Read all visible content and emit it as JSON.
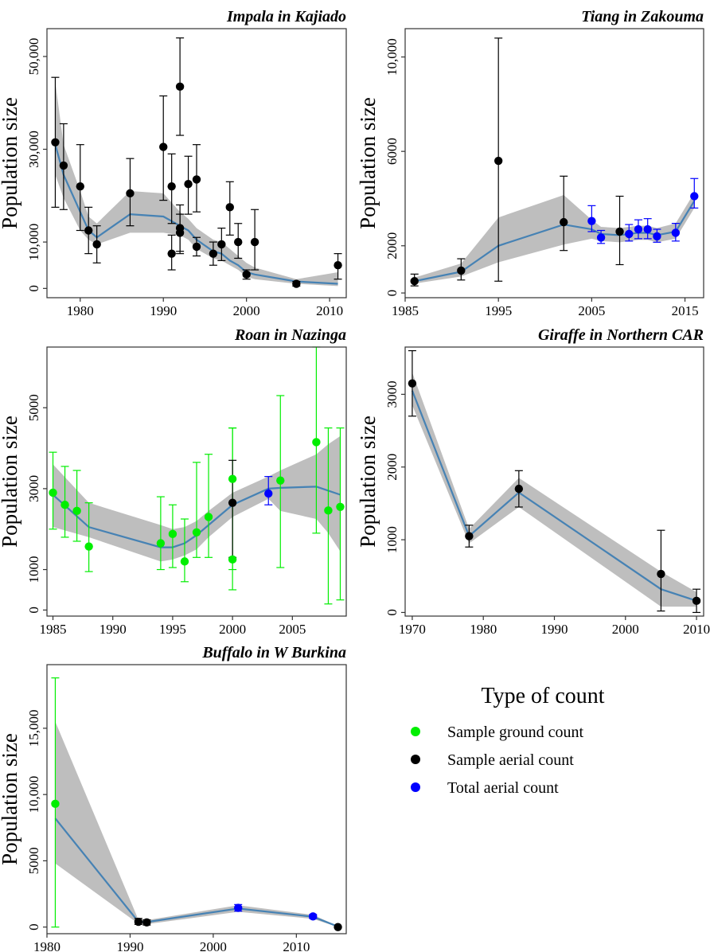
{
  "colors": {
    "ground": "#00ee00",
    "aerial": "#000000",
    "total": "#0000ff",
    "trend": "#4682b4",
    "ribbon": "#bebebe",
    "frame": "#333333"
  },
  "legend": {
    "title": "Type of count",
    "items": [
      {
        "label": "Sample ground count",
        "type": "ground"
      },
      {
        "label": "Sample aerial count",
        "type": "aerial"
      },
      {
        "label": "Total aerial count",
        "type": "total"
      }
    ]
  },
  "chart_data": [
    {
      "type": "scatter",
      "title": "Impala in Kajiado",
      "ylabel": "Population size",
      "xlim": [
        1976,
        2012
      ],
      "ylim": [
        -2000,
        56000
      ],
      "xticks": [
        1980,
        1990,
        2000,
        2010
      ],
      "yticks": [
        0,
        10000,
        30000,
        50000
      ],
      "ytick_labels": [
        "0",
        "10,000",
        "30,000",
        "50,000"
      ],
      "points": [
        {
          "x": 1977,
          "y": 31500,
          "lo": 17500,
          "hi": 45500,
          "type": "aerial"
        },
        {
          "x": 1978,
          "y": 26500,
          "lo": 17000,
          "hi": 35500,
          "type": "aerial"
        },
        {
          "x": 1980,
          "y": 22000,
          "lo": 12500,
          "hi": 31000,
          "type": "aerial"
        },
        {
          "x": 1981,
          "y": 12500,
          "lo": 7500,
          "hi": 17500,
          "type": "aerial"
        },
        {
          "x": 1982,
          "y": 9500,
          "lo": 5500,
          "hi": 13500,
          "type": "aerial"
        },
        {
          "x": 1986,
          "y": 20500,
          "lo": 13500,
          "hi": 28000,
          "type": "aerial"
        },
        {
          "x": 1990,
          "y": 30500,
          "lo": 19000,
          "hi": 41500,
          "type": "aerial"
        },
        {
          "x": 1991,
          "y": 22000,
          "lo": 14000,
          "hi": 29000,
          "type": "aerial"
        },
        {
          "x": 1991,
          "y": 7500,
          "lo": 4000,
          "hi": 11500,
          "type": "aerial"
        },
        {
          "x": 1992,
          "y": 43500,
          "lo": 33000,
          "hi": 54000,
          "type": "aerial"
        },
        {
          "x": 1992,
          "y": 13000,
          "lo": 8000,
          "hi": 18000,
          "type": "aerial"
        },
        {
          "x": 1992,
          "y": 12000,
          "lo": 7500,
          "hi": 16000,
          "type": "aerial"
        },
        {
          "x": 1993,
          "y": 22500,
          "lo": 16000,
          "hi": 28500,
          "type": "aerial"
        },
        {
          "x": 1994,
          "y": 23500,
          "lo": 16500,
          "hi": 31000,
          "type": "aerial"
        },
        {
          "x": 1994,
          "y": 9000,
          "lo": 7000,
          "hi": 11000,
          "type": "aerial"
        },
        {
          "x": 1996,
          "y": 7500,
          "lo": 5000,
          "hi": 10000,
          "type": "aerial"
        },
        {
          "x": 1997,
          "y": 9500,
          "lo": 6000,
          "hi": 13000,
          "type": "aerial"
        },
        {
          "x": 1998,
          "y": 17500,
          "lo": 11500,
          "hi": 23000,
          "type": "aerial"
        },
        {
          "x": 1999,
          "y": 10000,
          "lo": 6500,
          "hi": 14000,
          "type": "aerial"
        },
        {
          "x": 2000,
          "y": 3000,
          "lo": 2000,
          "hi": 4000,
          "type": "aerial"
        },
        {
          "x": 2001,
          "y": 10000,
          "lo": 4000,
          "hi": 17000,
          "type": "aerial"
        },
        {
          "x": 2006,
          "y": 1000,
          "lo": 500,
          "hi": 1500,
          "type": "aerial"
        },
        {
          "x": 2011,
          "y": 5000,
          "lo": 2000,
          "hi": 7500,
          "type": "aerial"
        }
      ],
      "trend": {
        "x": [
          1977,
          1978,
          1980,
          1981,
          1982,
          1986,
          1990,
          1992,
          1993,
          1994,
          1996,
          1997,
          1998,
          1999,
          2000,
          2001,
          2006,
          2011
        ],
        "y": [
          31000,
          24500,
          16500,
          12500,
          11000,
          16000,
          15500,
          13500,
          12500,
          10500,
          8000,
          7500,
          6000,
          5000,
          3500,
          3000,
          1500,
          1000
        ],
        "lo": [
          24500,
          19500,
          12500,
          10500,
          9500,
          12000,
          12000,
          11500,
          10500,
          8500,
          6500,
          6000,
          5000,
          4000,
          2500,
          2000,
          1000,
          500
        ],
        "hi": [
          44500,
          31000,
          21000,
          15500,
          14000,
          21000,
          20500,
          16500,
          15000,
          13000,
          10500,
          10000,
          8500,
          7000,
          5500,
          4500,
          2000,
          3500
        ]
      }
    },
    {
      "type": "scatter",
      "title": "Tiang in Zakouma",
      "ylabel": "Population size",
      "xlim": [
        1985,
        2017
      ],
      "ylim": [
        -200,
        11200
      ],
      "xticks": [
        1985,
        1995,
        2005,
        2015
      ],
      "yticks": [
        0,
        2000,
        6000,
        10000
      ],
      "ytick_labels": [
        "0",
        "2000",
        "6000",
        "10,000"
      ],
      "points": [
        {
          "x": 1986,
          "y": 500,
          "lo": 300,
          "hi": 800,
          "type": "aerial"
        },
        {
          "x": 1991,
          "y": 950,
          "lo": 550,
          "hi": 1450,
          "type": "aerial"
        },
        {
          "x": 1995,
          "y": 5600,
          "lo": 500,
          "hi": 10800,
          "type": "aerial"
        },
        {
          "x": 2002,
          "y": 3000,
          "lo": 1800,
          "hi": 4950,
          "type": "aerial"
        },
        {
          "x": 2005,
          "y": 3050,
          "lo": 2600,
          "hi": 3700,
          "type": "total"
        },
        {
          "x": 2006,
          "y": 2350,
          "lo": 2100,
          "hi": 2650,
          "type": "total"
        },
        {
          "x": 2008,
          "y": 2600,
          "lo": 1200,
          "hi": 4100,
          "type": "aerial"
        },
        {
          "x": 2009,
          "y": 2500,
          "lo": 2200,
          "hi": 2900,
          "type": "total"
        },
        {
          "x": 2010,
          "y": 2700,
          "lo": 2300,
          "hi": 3100,
          "type": "total"
        },
        {
          "x": 2011,
          "y": 2700,
          "lo": 2300,
          "hi": 3150,
          "type": "total"
        },
        {
          "x": 2012,
          "y": 2400,
          "lo": 2150,
          "hi": 2700,
          "type": "total"
        },
        {
          "x": 2014,
          "y": 2550,
          "lo": 2200,
          "hi": 2950,
          "type": "total"
        },
        {
          "x": 2016,
          "y": 4100,
          "lo": 3600,
          "hi": 4850,
          "type": "total"
        }
      ],
      "trend": {
        "x": [
          1986,
          1991,
          1995,
          2002,
          2005,
          2006,
          2008,
          2009,
          2010,
          2011,
          2012,
          2014,
          2016
        ],
        "y": [
          500,
          900,
          2000,
          2900,
          2700,
          2500,
          2450,
          2500,
          2550,
          2550,
          2450,
          2600,
          3900
        ],
        "lo": [
          400,
          700,
          1300,
          2050,
          2300,
          2200,
          2150,
          2200,
          2250,
          2250,
          2150,
          2300,
          3600
        ],
        "hi": [
          650,
          1250,
          3200,
          4150,
          3100,
          2800,
          2750,
          2800,
          2850,
          2850,
          2750,
          2950,
          4250
        ]
      }
    },
    {
      "type": "scatter",
      "title": "Roan in Nazinga",
      "ylabel": "Population size",
      "xlim": [
        1984.5,
        2009.5
      ],
      "ylim": [
        -150,
        6500
      ],
      "xticks": [
        1985,
        1990,
        1995,
        2000,
        2005
      ],
      "yticks": [
        0,
        1000,
        3000,
        5000
      ],
      "ytick_labels": [
        "0",
        "1000",
        "3000",
        "5000"
      ],
      "points": [
        {
          "x": 1985,
          "y": 2900,
          "lo": 2000,
          "hi": 3900,
          "type": "ground"
        },
        {
          "x": 1986,
          "y": 2600,
          "lo": 1800,
          "hi": 3550,
          "type": "ground"
        },
        {
          "x": 1987,
          "y": 2450,
          "lo": 1700,
          "hi": 3450,
          "type": "ground"
        },
        {
          "x": 1988,
          "y": 1570,
          "lo": 950,
          "hi": 2650,
          "type": "ground"
        },
        {
          "x": 1994,
          "y": 1650,
          "lo": 1000,
          "hi": 2800,
          "type": "ground"
        },
        {
          "x": 1995,
          "y": 1880,
          "lo": 1050,
          "hi": 2600,
          "type": "ground"
        },
        {
          "x": 1996,
          "y": 1200,
          "lo": 700,
          "hi": 2250,
          "type": "ground"
        },
        {
          "x": 1997,
          "y": 1920,
          "lo": 1300,
          "hi": 3650,
          "type": "ground"
        },
        {
          "x": 1998,
          "y": 2300,
          "lo": 1300,
          "hi": 3850,
          "type": "ground"
        },
        {
          "x": 2000,
          "y": 1250,
          "lo": 500,
          "hi": 4500,
          "type": "ground"
        },
        {
          "x": 2000,
          "y": 3240,
          "lo": 1000,
          "hi": 4500,
          "type": "ground"
        },
        {
          "x": 2000,
          "y": 2650,
          "lo": 1300,
          "hi": 3700,
          "type": "aerial"
        },
        {
          "x": 2003,
          "y": 2880,
          "lo": 2600,
          "hi": 3300,
          "type": "total"
        },
        {
          "x": 2004,
          "y": 3200,
          "lo": 1050,
          "hi": 5300,
          "type": "ground"
        },
        {
          "x": 2007,
          "y": 4150,
          "lo": 1900,
          "hi": 6500,
          "type": "ground"
        },
        {
          "x": 2008,
          "y": 2460,
          "lo": 150,
          "hi": 4500,
          "type": "ground"
        },
        {
          "x": 2009,
          "y": 2550,
          "lo": 250,
          "hi": 4500,
          "type": "ground"
        }
      ],
      "trend": {
        "x": [
          1985,
          1988,
          1994,
          1995,
          1996,
          1997,
          1998,
          2000,
          2003,
          2004,
          2007,
          2008,
          2009
        ],
        "y": [
          2850,
          2050,
          1550,
          1550,
          1650,
          1850,
          2100,
          2600,
          3000,
          3020,
          3050,
          2950,
          2850
        ],
        "lo": [
          2050,
          1800,
          1200,
          1250,
          1350,
          1500,
          1800,
          2300,
          2750,
          2450,
          2250,
          1900,
          1450
        ],
        "hi": [
          3600,
          2650,
          2100,
          2000,
          2050,
          2200,
          2450,
          2900,
          3300,
          3450,
          3850,
          4100,
          4300
        ]
      }
    },
    {
      "type": "scatter",
      "title": "Giraffe in Northern CAR",
      "ylabel": "Population size",
      "xlim": [
        1969,
        2011
      ],
      "ylim": [
        -50,
        3650
      ],
      "xticks": [
        1970,
        1980,
        1990,
        2000,
        2010
      ],
      "yticks": [
        0,
        1000,
        2000,
        3000
      ],
      "ytick_labels": [
        "0",
        "1000",
        "2000",
        "3000"
      ],
      "points": [
        {
          "x": 1970,
          "y": 3150,
          "lo": 2700,
          "hi": 3600,
          "type": "aerial"
        },
        {
          "x": 1978,
          "y": 1050,
          "lo": 900,
          "hi": 1200,
          "type": "aerial"
        },
        {
          "x": 1985,
          "y": 1700,
          "lo": 1450,
          "hi": 1950,
          "type": "aerial"
        },
        {
          "x": 2005,
          "y": 530,
          "lo": 20,
          "hi": 1130,
          "type": "aerial"
        },
        {
          "x": 2010,
          "y": 160,
          "lo": 0,
          "hi": 320,
          "type": "aerial"
        }
      ],
      "trend": {
        "x": [
          1970,
          1978,
          1985,
          2005,
          2010
        ],
        "y": [
          3050,
          1050,
          1650,
          320,
          160
        ],
        "lo": [
          2850,
          950,
          1450,
          80,
          80
        ],
        "hi": [
          3300,
          1150,
          1850,
          560,
          280
        ]
      }
    },
    {
      "type": "scatter",
      "title": "Buffalo in W Burkina",
      "ylabel": "Population size",
      "xlim": [
        1980,
        2016
      ],
      "ylim": [
        -500,
        19800
      ],
      "xticks": [
        1980,
        1990,
        2000,
        2010
      ],
      "yticks": [
        0,
        5000,
        10000,
        15000
      ],
      "ytick_labels": [
        "0",
        "5000",
        "10,000",
        "15,000"
      ],
      "points": [
        {
          "x": 1981,
          "y": 9300,
          "lo": 0,
          "hi": 18800,
          "type": "ground"
        },
        {
          "x": 1991,
          "y": 400,
          "lo": 200,
          "hi": 650,
          "type": "aerial"
        },
        {
          "x": 1992,
          "y": 350,
          "lo": 150,
          "hi": 550,
          "type": "aerial"
        },
        {
          "x": 2003,
          "y": 1450,
          "lo": 1200,
          "hi": 1700,
          "type": "total"
        },
        {
          "x": 2012,
          "y": 800,
          "lo": 650,
          "hi": 950,
          "type": "total"
        },
        {
          "x": 2015,
          "y": 0,
          "lo": 0,
          "hi": 0,
          "type": "aerial"
        }
      ],
      "trend": {
        "x": [
          1981,
          1991,
          1992,
          2003,
          2012,
          2015
        ],
        "y": [
          8200,
          400,
          380,
          1400,
          780,
          40
        ],
        "lo": [
          4800,
          250,
          220,
          1150,
          620,
          0
        ],
        "hi": [
          15500,
          550,
          520,
          1650,
          920,
          80
        ]
      }
    }
  ]
}
